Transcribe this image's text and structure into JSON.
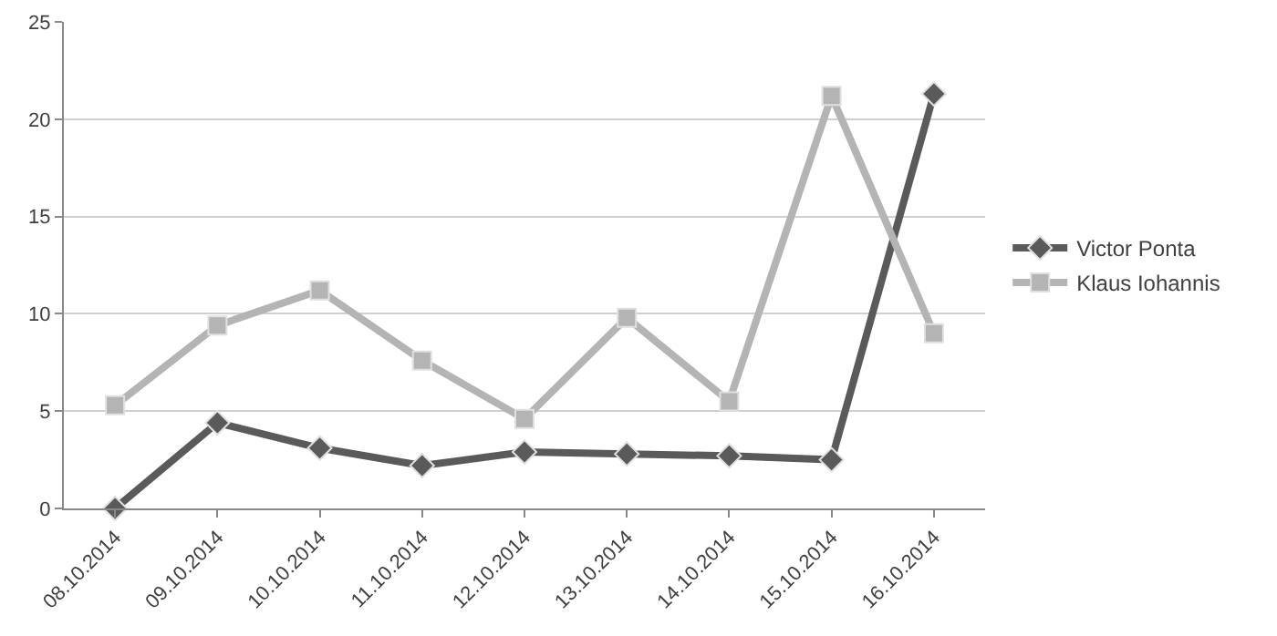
{
  "chart_data": {
    "type": "line",
    "categories": [
      "08.10.2014",
      "09.10.2014",
      "10.10.2014",
      "11.10.2014",
      "12.10.2014",
      "13.10.2014",
      "14.10.2014",
      "15.10.2014",
      "16.10.2014"
    ],
    "series": [
      {
        "name": "Victor Ponta",
        "color": "#5a5a5a",
        "marker": "diamond",
        "values": [
          0,
          4.4,
          3.1,
          2.2,
          2.9,
          2.8,
          2.7,
          2.5,
          21.3
        ]
      },
      {
        "name": "Klaus Iohannis",
        "color": "#b4b4b4",
        "marker": "square",
        "values": [
          5.3,
          9.4,
          11.2,
          7.6,
          4.6,
          9.8,
          5.5,
          21.2,
          9.0
        ]
      }
    ],
    "ylim": [
      0,
      25
    ],
    "yticks": [
      0,
      5,
      10,
      15,
      20,
      25
    ],
    "grid": "y",
    "legend": "right",
    "line_style": "solid"
  }
}
